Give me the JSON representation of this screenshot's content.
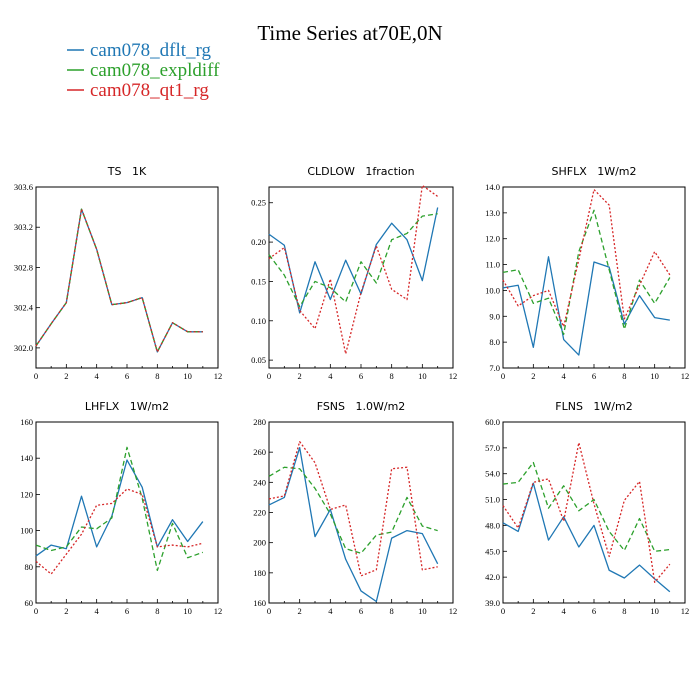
{
  "figure_title": "Time Series at70E,0N",
  "legend": [
    {
      "label": "cam078_dflt_rg",
      "color": "#1f77b4",
      "dash": "solid"
    },
    {
      "label": "cam078_expldiff",
      "color": "#2ca02c",
      "dash": "dash"
    },
    {
      "label": "cam078_qt1_rg",
      "color": "#d62728",
      "dash": "dot"
    }
  ],
  "chart_data": [
    {
      "type": "line",
      "title": "TS   1K",
      "xlim": [
        0,
        12
      ],
      "xticks": [
        0,
        2,
        4,
        6,
        8,
        10,
        12
      ],
      "ylim": [
        301.8,
        303.6
      ],
      "yticks": [
        302.0,
        302.4,
        302.8,
        303.2,
        303.6
      ],
      "ytick_labels": [
        "302.0",
        "302.4",
        "302.8",
        "303.2",
        "303.6"
      ],
      "x": [
        0,
        1,
        2,
        3,
        4,
        5,
        6,
        7,
        8,
        9,
        10,
        11
      ],
      "series": [
        {
          "name": "cam078_dflt_rg",
          "values": [
            302.02,
            302.24,
            302.45,
            303.38,
            302.98,
            302.43,
            302.45,
            302.5,
            301.96,
            302.25,
            302.16,
            302.16
          ]
        },
        {
          "name": "cam078_expldiff",
          "values": [
            302.02,
            302.24,
            302.45,
            303.38,
            302.98,
            302.43,
            302.45,
            302.5,
            301.96,
            302.25,
            302.16,
            302.16
          ]
        },
        {
          "name": "cam078_qt1_rg",
          "values": [
            302.02,
            302.24,
            302.45,
            303.38,
            302.98,
            302.43,
            302.45,
            302.5,
            301.96,
            302.25,
            302.16,
            302.16
          ]
        }
      ]
    },
    {
      "type": "line",
      "title": "CLDLOW   1fraction",
      "xlim": [
        0,
        12
      ],
      "xticks": [
        0,
        2,
        4,
        6,
        8,
        10,
        12
      ],
      "ylim": [
        0.04,
        0.27
      ],
      "yticks": [
        0.05,
        0.1,
        0.15,
        0.2,
        0.25
      ],
      "ytick_labels": [
        "0.05",
        "0.10",
        "0.15",
        "0.20",
        "0.25"
      ],
      "x": [
        0,
        1,
        2,
        3,
        4,
        5,
        6,
        7,
        8,
        9,
        10,
        11
      ],
      "series": [
        {
          "name": "cam078_dflt_rg",
          "values": [
            0.21,
            0.196,
            0.11,
            0.175,
            0.127,
            0.177,
            0.134,
            0.197,
            0.224,
            0.203,
            0.151,
            0.244
          ]
        },
        {
          "name": "cam078_expldiff",
          "values": [
            0.184,
            0.158,
            0.118,
            0.15,
            0.142,
            0.124,
            0.175,
            0.148,
            0.203,
            0.211,
            0.233,
            0.236
          ]
        },
        {
          "name": "cam078_qt1_rg",
          "values": [
            0.179,
            0.193,
            0.113,
            0.09,
            0.153,
            0.058,
            0.136,
            0.195,
            0.14,
            0.127,
            0.272,
            0.258
          ]
        }
      ]
    },
    {
      "type": "line",
      "title": "SHFLX   1W/m2",
      "xlim": [
        0,
        12
      ],
      "xticks": [
        0,
        2,
        4,
        6,
        8,
        10,
        12
      ],
      "ylim": [
        7.0,
        14.0
      ],
      "yticks": [
        7.0,
        8.0,
        9.0,
        10.0,
        11.0,
        12.0,
        13.0,
        14.0
      ],
      "ytick_labels": [
        "7.0",
        "8.0",
        "9.0",
        "10.0",
        "11.0",
        "12.0",
        "13.0",
        "14.0"
      ],
      "x": [
        0,
        1,
        2,
        3,
        4,
        5,
        6,
        7,
        8,
        9,
        10,
        11
      ],
      "series": [
        {
          "name": "cam078_dflt_rg",
          "values": [
            10.1,
            10.2,
            7.8,
            11.3,
            8.1,
            7.5,
            11.1,
            10.9,
            8.7,
            9.8,
            8.95,
            8.85
          ]
        },
        {
          "name": "cam078_expldiff",
          "values": [
            10.7,
            10.8,
            9.5,
            9.7,
            8.3,
            11.5,
            13.1,
            10.8,
            8.5,
            10.4,
            9.5,
            10.5
          ]
        },
        {
          "name": "cam078_qt1_rg",
          "values": [
            10.4,
            9.4,
            9.8,
            10.0,
            8.6,
            11.2,
            13.9,
            13.3,
            8.9,
            10.2,
            11.5,
            10.6
          ]
        }
      ]
    },
    {
      "type": "line",
      "title": "LHFLX   1W/m2",
      "xlim": [
        0,
        12
      ],
      "xticks": [
        0,
        2,
        4,
        6,
        8,
        10,
        12
      ],
      "ylim": [
        60,
        160
      ],
      "yticks": [
        60,
        80,
        100,
        120,
        140,
        160
      ],
      "ytick_labels": [
        "60",
        "80",
        "100",
        "120",
        "140",
        "160"
      ],
      "x": [
        0,
        1,
        2,
        3,
        4,
        5,
        6,
        7,
        8,
        9,
        10,
        11
      ],
      "series": [
        {
          "name": "cam078_dflt_rg",
          "values": [
            86,
            92,
            90,
            119,
            91,
            108,
            139,
            124,
            91,
            106,
            94,
            105
          ]
        },
        {
          "name": "cam078_expldiff",
          "values": [
            92,
            89,
            91,
            102,
            101,
            107,
            146,
            118,
            78,
            104,
            85,
            88
          ]
        },
        {
          "name": "cam078_qt1_rg",
          "values": [
            83,
            76,
            87,
            98,
            114,
            115,
            123,
            120,
            91,
            92,
            91,
            93
          ]
        }
      ]
    },
    {
      "type": "line",
      "title": "FSNS   1.0W/m2",
      "xlim": [
        0,
        12
      ],
      "xticks": [
        0,
        2,
        4,
        6,
        8,
        10,
        12
      ],
      "ylim": [
        160,
        280
      ],
      "yticks": [
        160,
        180,
        200,
        220,
        240,
        260,
        280
      ],
      "ytick_labels": [
        "160",
        "180",
        "200",
        "220",
        "240",
        "260",
        "280"
      ],
      "x": [
        0,
        1,
        2,
        3,
        4,
        5,
        6,
        7,
        8,
        9,
        10,
        11
      ],
      "series": [
        {
          "name": "cam078_dflt_rg",
          "values": [
            225,
            230,
            263,
            204,
            222,
            189,
            168,
            161,
            203,
            208,
            206,
            186
          ]
        },
        {
          "name": "cam078_expldiff",
          "values": [
            244,
            250,
            249,
            236,
            219,
            196,
            193,
            205,
            207,
            230,
            211,
            208
          ]
        },
        {
          "name": "cam078_qt1_rg",
          "values": [
            229,
            231,
            267,
            253,
            222,
            225,
            178,
            182,
            249,
            250,
            182,
            184
          ]
        }
      ]
    },
    {
      "type": "line",
      "title": "FLNS   1W/m2",
      "xlim": [
        0,
        12
      ],
      "xticks": [
        0,
        2,
        4,
        6,
        8,
        10,
        12
      ],
      "ylim": [
        39,
        60
      ],
      "yticks": [
        39,
        42,
        45,
        48,
        51,
        54,
        57,
        60
      ],
      "ytick_labels": [
        "39.0",
        "42.0",
        "45.0",
        "48.0",
        "51.0",
        "54.0",
        "57.0",
        "60.0"
      ],
      "x": [
        0,
        1,
        2,
        3,
        4,
        5,
        6,
        7,
        8,
        9,
        10,
        11
      ],
      "series": [
        {
          "name": "cam078_dflt_rg",
          "values": [
            48.3,
            47.3,
            52.9,
            46.3,
            49.0,
            45.5,
            48.0,
            42.8,
            41.9,
            43.4,
            41.8,
            40.3
          ]
        },
        {
          "name": "cam078_expldiff",
          "values": [
            52.8,
            53.0,
            55.3,
            50.0,
            52.6,
            49.7,
            51.0,
            47.3,
            45.1,
            48.8,
            45.0,
            45.2
          ]
        },
        {
          "name": "cam078_qt1_rg",
          "values": [
            50.3,
            47.7,
            53.0,
            53.4,
            48.5,
            57.6,
            50.5,
            44.4,
            50.9,
            53.1,
            41.4,
            43.5
          ]
        }
      ]
    }
  ]
}
